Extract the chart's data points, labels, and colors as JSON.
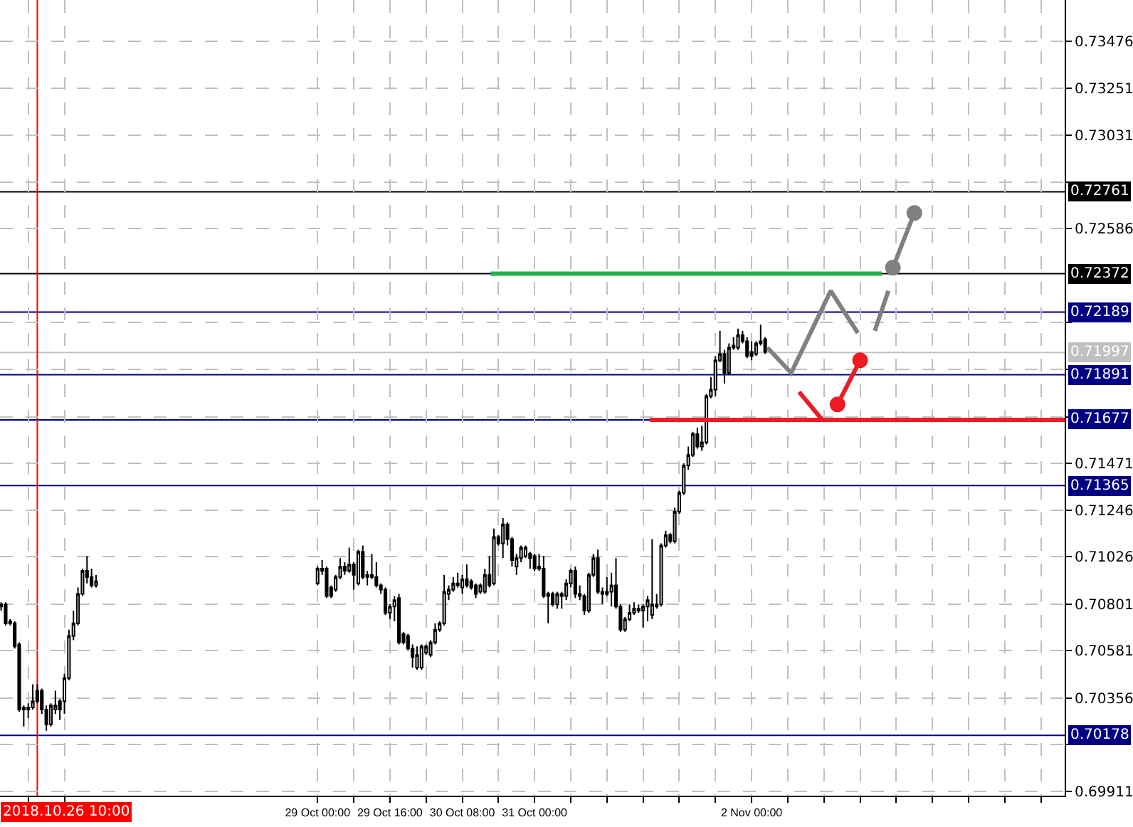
{
  "chart_data": {
    "type": "candlestick",
    "color": "#000000",
    "x": [
      "2018-10-26T02:00",
      "2018-10-26T03:00",
      "2018-10-26T04:00",
      "2018-10-26T05:00",
      "2018-10-26T06:00",
      "2018-10-26T07:00",
      "2018-10-26T08:00",
      "2018-10-26T09:00",
      "2018-10-26T10:00",
      "2018-10-26T11:00",
      "2018-10-26T12:00",
      "2018-10-26T13:00",
      "2018-10-26T14:00",
      "2018-10-26T15:00",
      "2018-10-26T16:00",
      "2018-10-26T17:00",
      "2018-10-26T18:00",
      "2018-10-26T19:00",
      "2018-10-26T20:00",
      "2018-10-26T21:00",
      "2018-10-26T22:00",
      "2018-10-26T23:00",
      "2018-10-29T00:00",
      "2018-10-29T01:00",
      "2018-10-29T02:00",
      "2018-10-29T03:00",
      "2018-10-29T04:00",
      "2018-10-29T05:00",
      "2018-10-29T06:00",
      "2018-10-29T07:00",
      "2018-10-29T08:00",
      "2018-10-29T09:00",
      "2018-10-29T10:00",
      "2018-10-29T11:00",
      "2018-10-29T12:00",
      "2018-10-29T13:00",
      "2018-10-29T14:00",
      "2018-10-29T15:00",
      "2018-10-29T16:00",
      "2018-10-29T17:00",
      "2018-10-29T18:00",
      "2018-10-29T19:00",
      "2018-10-29T20:00",
      "2018-10-29T21:00",
      "2018-10-29T22:00",
      "2018-10-29T23:00",
      "2018-10-30T00:00",
      "2018-10-30T01:00",
      "2018-10-30T02:00",
      "2018-10-30T03:00",
      "2018-10-30T04:00",
      "2018-10-30T05:00",
      "2018-10-30T06:00",
      "2018-10-30T07:00",
      "2018-10-30T08:00",
      "2018-10-30T09:00",
      "2018-10-30T10:00",
      "2018-10-30T11:00",
      "2018-10-30T12:00",
      "2018-10-30T13:00",
      "2018-10-30T14:00",
      "2018-10-30T15:00",
      "2018-10-30T16:00",
      "2018-10-30T17:00",
      "2018-10-30T18:00",
      "2018-10-30T19:00",
      "2018-10-30T20:00",
      "2018-10-30T21:00",
      "2018-10-30T22:00",
      "2018-10-30T23:00",
      "2018-10-31T00:00",
      "2018-10-31T01:00",
      "2018-10-31T02:00",
      "2018-10-31T03:00",
      "2018-10-31T04:00",
      "2018-10-31T05:00",
      "2018-10-31T06:00",
      "2018-10-31T07:00",
      "2018-10-31T08:00",
      "2018-10-31T09:00",
      "2018-10-31T10:00",
      "2018-10-31T11:00",
      "2018-10-31T12:00",
      "2018-10-31T13:00",
      "2018-10-31T14:00",
      "2018-10-31T15:00",
      "2018-10-31T16:00",
      "2018-10-31T17:00",
      "2018-10-31T18:00",
      "2018-10-31T19:00",
      "2018-10-31T20:00",
      "2018-10-31T21:00",
      "2018-10-31T22:00",
      "2018-10-31T23:00",
      "2018-11-01T00:00",
      "2018-11-01T01:00",
      "2018-11-01T02:00",
      "2018-11-01T03:00",
      "2018-11-01T04:00",
      "2018-11-01T05:00",
      "2018-11-01T06:00",
      "2018-11-01T07:00",
      "2018-11-01T08:00",
      "2018-11-01T09:00",
      "2018-11-01T10:00",
      "2018-11-01T11:00",
      "2018-11-01T12:00",
      "2018-11-01T13:00",
      "2018-11-01T14:00",
      "2018-11-01T15:00",
      "2018-11-01T16:00",
      "2018-11-01T17:00",
      "2018-11-01T18:00",
      "2018-11-01T19:00",
      "2018-11-01T20:00",
      "2018-11-01T21:00",
      "2018-11-01T22:00",
      "2018-11-01T23:00",
      "2018-11-02T00:00",
      "2018-11-02T01:00",
      "2018-11-02T02:00",
      "2018-11-02T03:00"
    ],
    "ohlc": [
      [
        0.7079,
        0.7081,
        0.7077,
        0.708
      ],
      [
        0.708,
        0.7081,
        0.707,
        0.7071
      ],
      [
        0.7072,
        0.7073,
        0.707,
        0.7071
      ],
      [
        0.7071,
        0.7072,
        0.7059,
        0.706
      ],
      [
        0.7061,
        0.7062,
        0.7029,
        0.703
      ],
      [
        0.7031,
        0.7032,
        0.7022,
        0.703
      ],
      [
        0.703,
        0.7033,
        0.7026,
        0.7031
      ],
      [
        0.7031,
        0.7042,
        0.703,
        0.7034
      ],
      [
        0.7039,
        0.7042,
        0.7033,
        0.7034
      ],
      [
        0.7039,
        0.704,
        0.7028,
        0.703
      ],
      [
        0.703,
        0.7032,
        0.702,
        0.7023
      ],
      [
        0.7023,
        0.7033,
        0.7022,
        0.7032
      ],
      [
        0.703,
        0.7039,
        0.7028,
        0.7032
      ],
      [
        0.7034,
        0.7035,
        0.7025,
        0.703
      ],
      [
        0.7034,
        0.7047,
        0.7028,
        0.7045
      ],
      [
        0.7045,
        0.7068,
        0.7044,
        0.7065
      ],
      [
        0.7065,
        0.7077,
        0.7063,
        0.7071
      ],
      [
        0.7071,
        0.7088,
        0.707,
        0.7085
      ],
      [
        0.7085,
        0.7097,
        0.7084,
        0.7096
      ],
      [
        0.7096,
        0.7103,
        0.709,
        0.7093
      ],
      [
        0.7093,
        0.7097,
        0.7088,
        0.7089
      ],
      [
        0.7089,
        0.7094,
        0.7088,
        0.7091
      ],
      [
        0.709,
        0.7098,
        0.7089,
        0.7097
      ],
      [
        0.7096,
        0.7101,
        0.7094,
        0.7097
      ],
      [
        0.7097,
        0.7098,
        0.7083,
        0.7084
      ],
      [
        0.7088,
        0.7089,
        0.7083,
        0.7084
      ],
      [
        0.7087,
        0.7094,
        0.7086,
        0.7093
      ],
      [
        0.7093,
        0.7102,
        0.7092,
        0.7098
      ],
      [
        0.7098,
        0.71,
        0.7094,
        0.7096
      ],
      [
        0.7096,
        0.7107,
        0.7095,
        0.7099
      ],
      [
        0.7099,
        0.71,
        0.7087,
        0.7094
      ],
      [
        0.709,
        0.7106,
        0.7089,
        0.7105
      ],
      [
        0.7105,
        0.7108,
        0.7092,
        0.7093
      ],
      [
        0.7094,
        0.7096,
        0.7089,
        0.7093
      ],
      [
        0.7094,
        0.7104,
        0.7092,
        0.7093
      ],
      [
        0.7093,
        0.71,
        0.7088,
        0.7089
      ],
      [
        0.7089,
        0.709,
        0.7085,
        0.7087
      ],
      [
        0.7087,
        0.7088,
        0.7075,
        0.7076
      ],
      [
        0.7076,
        0.708,
        0.7073,
        0.7079
      ],
      [
        0.7079,
        0.7084,
        0.7072,
        0.7082
      ],
      [
        0.7083,
        0.7085,
        0.7061,
        0.7062
      ],
      [
        0.7066,
        0.7067,
        0.7061,
        0.7062
      ],
      [
        0.7065,
        0.7066,
        0.7058,
        0.7059
      ],
      [
        0.7059,
        0.7061,
        0.705,
        0.7055
      ],
      [
        0.705,
        0.706,
        0.7049,
        0.7056
      ],
      [
        0.705,
        0.7061,
        0.7049,
        0.706
      ],
      [
        0.7057,
        0.7061,
        0.7056,
        0.706
      ],
      [
        0.7056,
        0.7063,
        0.7055,
        0.7062
      ],
      [
        0.7062,
        0.7071,
        0.7061,
        0.7068
      ],
      [
        0.7068,
        0.7072,
        0.7067,
        0.7071
      ],
      [
        0.7071,
        0.7094,
        0.707,
        0.7086
      ],
      [
        0.7085,
        0.7089,
        0.7082,
        0.7087
      ],
      [
        0.7087,
        0.7093,
        0.7086,
        0.709
      ],
      [
        0.709,
        0.7095,
        0.7088,
        0.7089
      ],
      [
        0.7088,
        0.7094,
        0.7085,
        0.7092
      ],
      [
        0.7092,
        0.7099,
        0.7088,
        0.7089
      ],
      [
        0.7091,
        0.7092,
        0.7087,
        0.7088
      ],
      [
        0.7089,
        0.709,
        0.7083,
        0.7085
      ],
      [
        0.7086,
        0.709,
        0.7085,
        0.7089
      ],
      [
        0.7086,
        0.7097,
        0.7085,
        0.7094
      ],
      [
        0.7094,
        0.7103,
        0.7088,
        0.7089
      ],
      [
        0.709,
        0.7116,
        0.7089,
        0.7112
      ],
      [
        0.7112,
        0.7113,
        0.7108,
        0.7109
      ],
      [
        0.7109,
        0.7121,
        0.7102,
        0.7118
      ],
      [
        0.7118,
        0.7119,
        0.7108,
        0.7111
      ],
      [
        0.7111,
        0.7112,
        0.7098,
        0.7101
      ],
      [
        0.7098,
        0.7104,
        0.7094,
        0.7102
      ],
      [
        0.7102,
        0.7108,
        0.71,
        0.7107
      ],
      [
        0.7103,
        0.7108,
        0.7102,
        0.7107
      ],
      [
        0.7104,
        0.7105,
        0.7097,
        0.7102
      ],
      [
        0.7103,
        0.7104,
        0.7096,
        0.7097
      ],
      [
        0.7098,
        0.7104,
        0.7096,
        0.7097
      ],
      [
        0.7097,
        0.7103,
        0.7083,
        0.7084
      ],
      [
        0.7084,
        0.7086,
        0.7071,
        0.7085
      ],
      [
        0.7085,
        0.7086,
        0.7079,
        0.708
      ],
      [
        0.708,
        0.7086,
        0.7078,
        0.7085
      ],
      [
        0.7084,
        0.7086,
        0.7078,
        0.7085
      ],
      [
        0.7084,
        0.7092,
        0.7082,
        0.709
      ],
      [
        0.709,
        0.7097,
        0.7088,
        0.7096
      ],
      [
        0.7096,
        0.7098,
        0.7083,
        0.7085
      ],
      [
        0.7085,
        0.7089,
        0.7082,
        0.7084
      ],
      [
        0.7084,
        0.7085,
        0.7075,
        0.7077
      ],
      [
        0.7077,
        0.7095,
        0.7076,
        0.7094
      ],
      [
        0.7094,
        0.7104,
        0.7093,
        0.7102
      ],
      [
        0.7102,
        0.7106,
        0.7085,
        0.7086
      ],
      [
        0.7086,
        0.7088,
        0.708,
        0.7085
      ],
      [
        0.7086,
        0.7093,
        0.7084,
        0.7085
      ],
      [
        0.7086,
        0.7095,
        0.7079,
        0.7089
      ],
      [
        0.7089,
        0.7102,
        0.7078,
        0.7079
      ],
      [
        0.7079,
        0.708,
        0.7067,
        0.7068
      ],
      [
        0.7068,
        0.7074,
        0.7067,
        0.7073
      ],
      [
        0.7073,
        0.708,
        0.7072,
        0.7076
      ],
      [
        0.7076,
        0.7081,
        0.7075,
        0.7078
      ],
      [
        0.7077,
        0.708,
        0.7076,
        0.7078
      ],
      [
        0.7077,
        0.708,
        0.7069,
        0.7079
      ],
      [
        0.7079,
        0.7084,
        0.7072,
        0.7082
      ],
      [
        0.7075,
        0.7111,
        0.7073,
        0.708
      ],
      [
        0.7079,
        0.7085,
        0.7078,
        0.708
      ],
      [
        0.708,
        0.7109,
        0.7079,
        0.7108
      ],
      [
        0.7108,
        0.7115,
        0.7107,
        0.7113
      ],
      [
        0.7113,
        0.7114,
        0.7109,
        0.711
      ],
      [
        0.711,
        0.7126,
        0.7109,
        0.7124
      ],
      [
        0.7124,
        0.7134,
        0.7123,
        0.7133
      ],
      [
        0.7133,
        0.7147,
        0.7132,
        0.7146
      ],
      [
        0.7146,
        0.7155,
        0.7144,
        0.7151
      ],
      [
        0.7151,
        0.7162,
        0.715,
        0.7161
      ],
      [
        0.7161,
        0.7164,
        0.7154,
        0.7155
      ],
      [
        0.7155,
        0.7165,
        0.7153,
        0.7157
      ],
      [
        0.7157,
        0.718,
        0.7156,
        0.7179
      ],
      [
        0.7179,
        0.7188,
        0.7178,
        0.7182
      ],
      [
        0.7182,
        0.7198,
        0.7179,
        0.7196
      ],
      [
        0.7196,
        0.721,
        0.7195,
        0.7199
      ],
      [
        0.7199,
        0.7201,
        0.7185,
        0.719
      ],
      [
        0.719,
        0.7204,
        0.7189,
        0.7202
      ],
      [
        0.7202,
        0.7207,
        0.7201,
        0.7203
      ],
      [
        0.7202,
        0.7211,
        0.7201,
        0.7208
      ],
      [
        0.7208,
        0.721,
        0.7204,
        0.7205
      ],
      [
        0.7205,
        0.7207,
        0.7197,
        0.7198
      ],
      [
        0.72,
        0.7205,
        0.7196,
        0.7198
      ],
      [
        0.7199,
        0.7205,
        0.7198,
        0.7204
      ],
      [
        0.7204,
        0.7213,
        0.7203,
        0.7205
      ],
      [
        0.7206,
        0.7207,
        0.7199,
        0.72
      ]
    ],
    "series": [
      {
        "type": "line",
        "color": "#22b14c",
        "x": [
          "2018-10-30T14:15",
          "2018-11-03T04:45"
        ],
        "values": [
          0.72372,
          0.72372
        ]
      },
      {
        "type": "line",
        "color": "#ed1c24",
        "x": [
          "2018-11-01T01:30",
          "2018-11-04T21:15"
        ],
        "values": [
          0.71677,
          0.71677
        ]
      },
      {
        "type": "line",
        "color": "#808080",
        "x": [
          "2018-11-02T03:30",
          "2018-11-02T08:45",
          "2018-11-02T17:30",
          "2018-11-02T23:30"
        ],
        "values": [
          0.7202,
          0.719,
          0.7229,
          0.7209
        ]
      },
      {
        "type": "line",
        "color": "#808080",
        "x": [
          "2018-11-03T03:15",
          "2018-11-03T06:15"
        ],
        "values": [
          0.721,
          0.7229
        ]
      },
      {
        "type": "line",
        "color": "#808080",
        "marker": "circle",
        "x": [
          "2018-11-03T07:15",
          "2018-11-03T12:00"
        ],
        "values": [
          0.724,
          0.7266
        ]
      },
      {
        "type": "line",
        "color": "#ed1c24",
        "x": [
          "2018-11-02T10:30",
          "2018-11-02T15:30"
        ],
        "values": [
          0.7181,
          0.7168
        ]
      },
      {
        "type": "line",
        "color": "#ed1c24",
        "marker": "circle",
        "x": [
          "2018-11-02T19:00",
          "2018-11-03T00:00"
        ],
        "values": [
          0.7175,
          0.7196
        ]
      }
    ],
    "xlim": [
      "2018-10-26T01:45",
      "2018-11-04T21:15"
    ],
    "xticks": [
      {
        "value": "2018-10-26T08:00",
        "label": null
      },
      {
        "value": "2018-10-26T16:00",
        "label": null
      },
      {
        "value": "2018-10-29T00:00",
        "label": "29 Oct 00:00"
      },
      {
        "value": "2018-10-29T08:00",
        "label": null
      },
      {
        "value": "2018-10-29T16:00",
        "label": "29 Oct 16:00"
      },
      {
        "value": "2018-10-30T00:00",
        "label": null
      },
      {
        "value": "2018-10-30T08:00",
        "label": "30 Oct 08:00"
      },
      {
        "value": "2018-10-30T16:00",
        "label": null
      },
      {
        "value": "2018-10-31T00:00",
        "label": "31 Oct 00:00"
      },
      {
        "value": "2018-10-31T08:00",
        "label": null
      },
      {
        "value": "2018-10-31T16:00",
        "label": null
      },
      {
        "value": "2018-11-01T00:00",
        "label": null
      },
      {
        "value": "2018-11-01T08:00",
        "label": null
      },
      {
        "value": "2018-11-01T16:00",
        "label": null
      },
      {
        "value": "2018-11-02T00:00",
        "label": "2 Nov 00:00"
      },
      {
        "value": "2018-11-02T08:00",
        "label": null
      },
      {
        "value": "2018-11-02T16:00",
        "label": null
      },
      {
        "value": "2018-11-03T00:00",
        "label": null
      },
      {
        "value": "2018-11-03T08:00",
        "label": null
      },
      {
        "value": "2018-11-03T16:00",
        "label": null
      },
      {
        "value": "2018-11-04T00:00",
        "label": null
      },
      {
        "value": "2018-11-04T08:00",
        "label": null
      },
      {
        "value": "2018-11-04T16:00",
        "label": null
      }
    ],
    "ylim": [
      0.69891,
      0.73672
    ],
    "yticks": [
      0.73476,
      0.73251,
      0.73031,
      {
        "value": 0.72806,
        "label": null
      },
      0.72586,
      {
        "value": 0.72141,
        "label": null
      },
      {
        "value": 0.71916,
        "label": null
      },
      {
        "value": 0.71691,
        "label": null
      },
      0.71471,
      0.71246,
      0.71026,
      0.70801,
      0.70581,
      0.70356,
      {
        "value": 0.70136,
        "label": null
      },
      0.69911
    ],
    "ref_lines": [
      {
        "axis": "y",
        "value": 0.72761,
        "label": "0.72761",
        "color": "#000000"
      },
      {
        "axis": "y",
        "value": 0.72372,
        "label": "0.72372",
        "color": "#000000"
      },
      {
        "axis": "y",
        "value": 0.72189,
        "label": "0.72189",
        "color": "#000080"
      },
      {
        "axis": "y",
        "value": 0.71997,
        "label": "0.71997",
        "color": "#c0c0c0"
      },
      {
        "axis": "y",
        "value": 0.71891,
        "label": "0.71891",
        "color": "#000080"
      },
      {
        "axis": "y",
        "value": 0.71677,
        "label": "0.71677",
        "color": "#000080"
      },
      {
        "axis": "y",
        "value": 0.71365,
        "label": "0.71365",
        "color": "#000080"
      },
      {
        "axis": "y",
        "value": 0.70178,
        "label": "0.70178",
        "color": "#000080"
      },
      {
        "axis": "x",
        "value": "2018-10-26T10:00",
        "label": "2018.10.26 10:00",
        "color": "#ff0000"
      }
    ],
    "grid": true
  }
}
